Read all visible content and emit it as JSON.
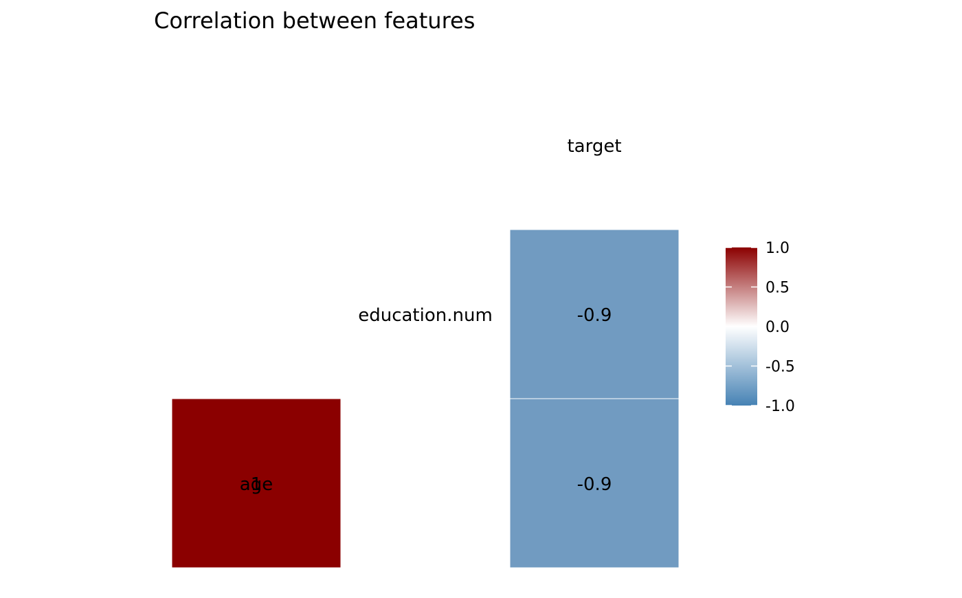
{
  "chart_data": {
    "type": "heatmap",
    "title": "Correlation between features",
    "row_labels": [
      "education.num",
      "age"
    ],
    "column_labels": [
      "target"
    ],
    "cells": [
      {
        "row": "age",
        "col": "age",
        "value": 1,
        "label": "1"
      },
      {
        "row": "age",
        "col": "target",
        "value": -0.9,
        "label": "-0.9"
      },
      {
        "row": "education.num",
        "col": "target",
        "value": -0.9,
        "label": "-0.9"
      }
    ],
    "legend": {
      "position": "right",
      "min": -1,
      "max": 1,
      "ticks": [
        {
          "value": 1,
          "label": "1.0"
        },
        {
          "value": 0.5,
          "label": "0.5"
        },
        {
          "value": 0,
          "label": "0.0"
        },
        {
          "value": -0.5,
          "label": "-0.5"
        },
        {
          "value": -1,
          "label": "-1.0"
        }
      ],
      "colors": {
        "low": "#4682b4",
        "mid": "#ffffff",
        "high": "#8b0000"
      }
    }
  }
}
